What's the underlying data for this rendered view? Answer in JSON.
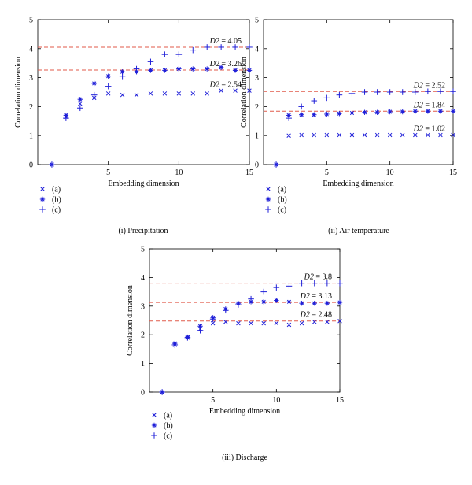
{
  "colors": {
    "marker": "#1f1fd8",
    "reference_line": "#e05a4a",
    "axis": "#000000"
  },
  "chart_data": [
    {
      "type": "scatter",
      "caption": "(i) Precipitation",
      "xlabel": "Embedding dimension",
      "ylabel": "Correlation dimension",
      "xlim": [
        0,
        15
      ],
      "ylim": [
        0,
        5
      ],
      "xticks": [
        5,
        10,
        15
      ],
      "yticks": [
        0,
        1,
        2,
        3,
        4,
        5
      ],
      "x": [
        1,
        2,
        3,
        4,
        5,
        6,
        7,
        8,
        9,
        10,
        11,
        12,
        13,
        14,
        15
      ],
      "series": [
        {
          "name": "(a)",
          "marker": "x",
          "values": [
            0,
            1.65,
            2.1,
            2.3,
            2.45,
            2.4,
            2.4,
            2.45,
            2.45,
            2.45,
            2.45,
            2.45,
            2.55,
            2.55,
            2.55
          ]
        },
        {
          "name": "(b)",
          "marker": "star",
          "values": [
            0,
            1.7,
            2.25,
            2.8,
            3.05,
            3.2,
            3.2,
            3.25,
            3.25,
            3.3,
            3.3,
            3.3,
            3.35,
            3.25,
            3.25
          ]
        },
        {
          "name": "(c)",
          "marker": "plus",
          "values": [
            0,
            1.6,
            1.95,
            2.4,
            2.7,
            3.05,
            3.3,
            3.55,
            3.8,
            3.8,
            3.95,
            4.05,
            4.05,
            4.05,
            4.05
          ]
        }
      ],
      "reference_lines": [
        {
          "y": 4.05,
          "label_prefix": "D2",
          "label_value": "=  4.05"
        },
        {
          "y": 3.26,
          "label_prefix": "D2",
          "label_value": "=  3.26"
        },
        {
          "y": 2.54,
          "label_prefix": "D2",
          "label_value": "=  2.54"
        }
      ]
    },
    {
      "type": "scatter",
      "caption": "(ii) Air temperature",
      "xlabel": "Embedding dimension",
      "ylabel": "Correlation dimension",
      "xlim": [
        0,
        15
      ],
      "ylim": [
        0,
        5
      ],
      "xticks": [
        5,
        10,
        15
      ],
      "yticks": [
        0,
        1,
        2,
        3,
        4,
        5
      ],
      "x": [
        1,
        2,
        3,
        4,
        5,
        6,
        7,
        8,
        9,
        10,
        11,
        12,
        13,
        14,
        15
      ],
      "series": [
        {
          "name": "(a)",
          "marker": "x",
          "values": [
            0,
            1.0,
            1.02,
            1.02,
            1.02,
            1.02,
            1.02,
            1.02,
            1.02,
            1.02,
            1.02,
            1.02,
            1.02,
            1.02,
            1.02
          ]
        },
        {
          "name": "(b)",
          "marker": "star",
          "values": [
            0,
            1.7,
            1.72,
            1.72,
            1.74,
            1.76,
            1.78,
            1.8,
            1.8,
            1.82,
            1.82,
            1.84,
            1.84,
            1.84,
            1.84
          ]
        },
        {
          "name": "(c)",
          "marker": "plus",
          "values": [
            0,
            1.6,
            2.0,
            2.2,
            2.3,
            2.4,
            2.45,
            2.5,
            2.5,
            2.5,
            2.5,
            2.5,
            2.52,
            2.52,
            2.52
          ]
        }
      ],
      "reference_lines": [
        {
          "y": 2.52,
          "label_prefix": "D2",
          "label_value": "=  2.52"
        },
        {
          "y": 1.84,
          "label_prefix": "D2",
          "label_value": "=  1.84"
        },
        {
          "y": 1.02,
          "label_prefix": "D2",
          "label_value": "=  1.02"
        }
      ]
    },
    {
      "type": "scatter",
      "caption": "(iii) Discharge",
      "xlabel": "Embedding dimension",
      "ylabel": "Correlation dimension",
      "xlim": [
        0,
        15
      ],
      "ylim": [
        0,
        5
      ],
      "xticks": [
        5,
        10,
        15
      ],
      "yticks": [
        0,
        1,
        2,
        3,
        4,
        5
      ],
      "x": [
        1,
        2,
        3,
        4,
        5,
        6,
        7,
        8,
        9,
        10,
        11,
        12,
        13,
        14,
        15
      ],
      "series": [
        {
          "name": "(a)",
          "marker": "x",
          "values": [
            0,
            1.65,
            1.9,
            2.2,
            2.4,
            2.45,
            2.4,
            2.4,
            2.4,
            2.4,
            2.35,
            2.4,
            2.45,
            2.45,
            2.48
          ]
        },
        {
          "name": "(b)",
          "marker": "star",
          "values": [
            0,
            1.7,
            1.92,
            2.3,
            2.6,
            2.9,
            3.1,
            3.15,
            3.15,
            3.2,
            3.15,
            3.1,
            3.1,
            3.1,
            3.13
          ]
        },
        {
          "name": "(c)",
          "marker": "plus",
          "values": [
            0,
            1.65,
            1.9,
            2.15,
            2.55,
            2.85,
            3.05,
            3.25,
            3.5,
            3.65,
            3.7,
            3.8,
            3.8,
            3.8,
            3.8
          ]
        }
      ],
      "reference_lines": [
        {
          "y": 3.8,
          "label_prefix": "D2",
          "label_value": "=  3.8"
        },
        {
          "y": 3.13,
          "label_prefix": "D2",
          "label_value": "=  3.13"
        },
        {
          "y": 2.48,
          "label_prefix": "D2",
          "label_value": "=  2.48"
        }
      ]
    }
  ]
}
